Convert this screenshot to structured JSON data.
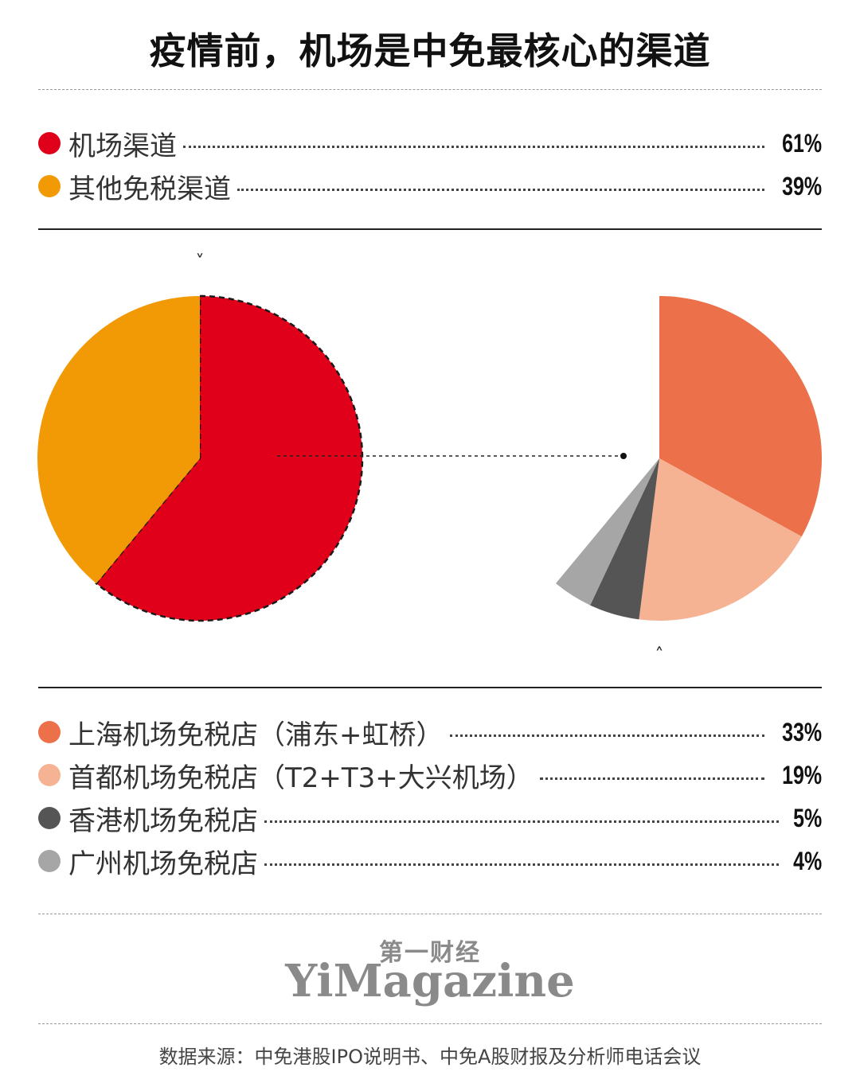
{
  "title": "疫情前，机场是中免最核心的渠道",
  "colors": {
    "airport": "#e00019",
    "other_duty_free": "#f29a05",
    "shanghai": "#ec7049",
    "beijing": "#f5b394",
    "hongkong": "#555555",
    "guangzhou": "#a6a6a6"
  },
  "chart_data": [
    {
      "type": "pie",
      "slices": [
        {
          "label": "机场渠道",
          "value": 61,
          "value_label": "61%",
          "color": "#e00019"
        },
        {
          "label": "其他免税渠道",
          "value": 39,
          "value_label": "39%",
          "color": "#f29a05"
        }
      ]
    },
    {
      "type": "pie",
      "partial_of": "机场渠道",
      "slices": [
        {
          "label": "上海机场免税店（浦东+虹桥）",
          "value": 33,
          "value_label": "33%",
          "color": "#ec7049"
        },
        {
          "label": "首都机场免税店（T2+T3+大兴机场）",
          "value": 19,
          "value_label": "19%",
          "color": "#f5b394"
        },
        {
          "label": "香港机场免税店",
          "value": 5,
          "value_label": "5%",
          "color": "#555555"
        },
        {
          "label": "广州机场免税店",
          "value": 4,
          "value_label": "4%",
          "color": "#a6a6a6"
        }
      ]
    }
  ],
  "brand": {
    "cn": "第一财经",
    "en": "YiMagazine"
  },
  "source": "数据来源：中免港股IPO说明书、中免A股财报及分析师电话会议"
}
